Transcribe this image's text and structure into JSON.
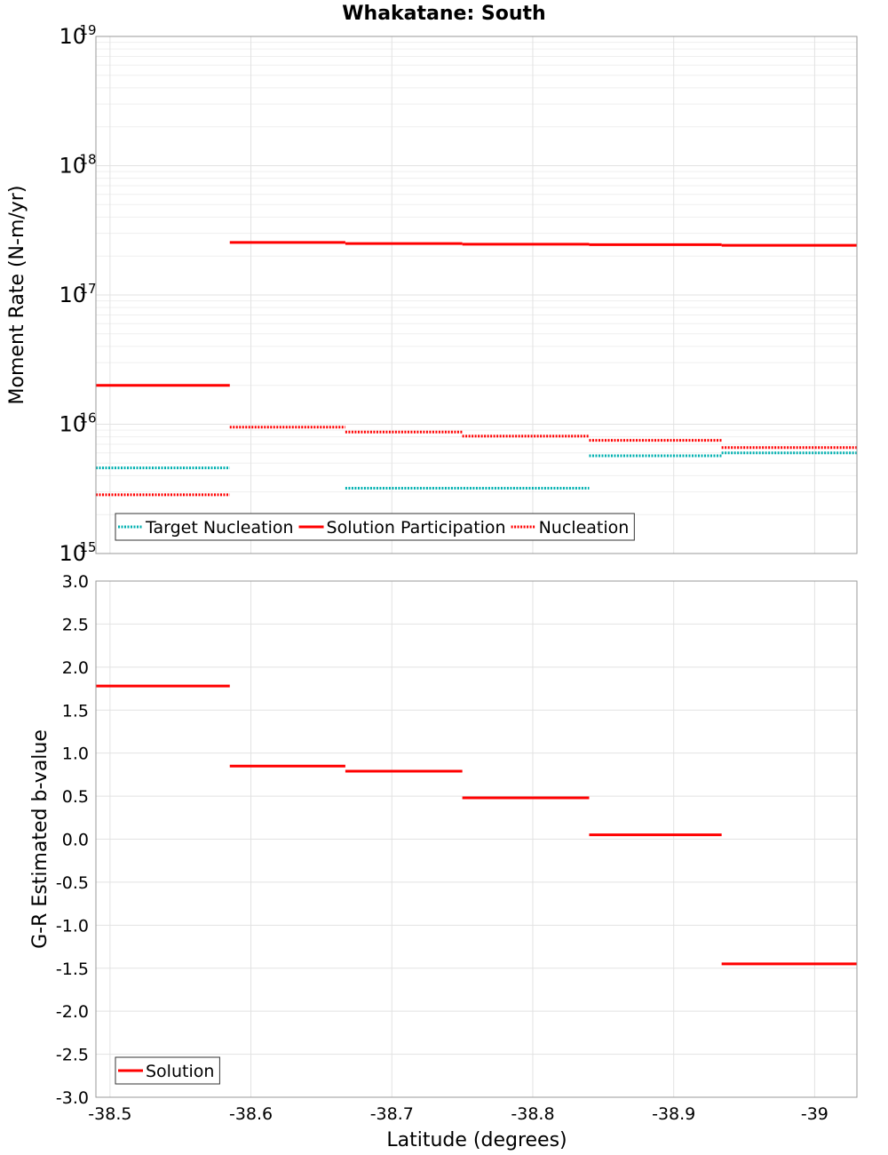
{
  "figure": {
    "title": "Whakatane: South",
    "xlabel": "Latitude (degrees)"
  },
  "chart_data": [
    {
      "type": "line",
      "title": "Whakatane: South",
      "ylabel": "Moment Rate (N-m/yr)",
      "yscale": "log",
      "ylim": [
        1000000000000000.0,
        1e+19
      ],
      "xlim": [
        -38.49,
        -39.03
      ],
      "x_ticks": [
        -38.5,
        -38.6,
        -38.7,
        -38.8,
        -38.9,
        -39
      ],
      "x_tick_labels": [
        "-38.5",
        "-38.6",
        "-38.7",
        "-38.8",
        "-38.9",
        "-39"
      ],
      "y_ticks": [
        1000000000000000.0,
        1e+16,
        1e+17,
        1e+18,
        1e+19
      ],
      "y_tick_labels": [
        {
          "base": "10",
          "exp": "15"
        },
        {
          "base": "10",
          "exp": "16"
        },
        {
          "base": "10",
          "exp": "17"
        },
        {
          "base": "10",
          "exp": "18"
        },
        {
          "base": "10",
          "exp": "19"
        }
      ],
      "grid": true,
      "legend_position": "bottom-left",
      "series": [
        {
          "name": "Target Nucleation",
          "color": "#00b0b0",
          "style": "dotted",
          "segments": [
            {
              "x0": -38.49,
              "x1": -38.585,
              "y": 4600000000000000.0
            },
            {
              "x0": -38.667,
              "x1": -38.84,
              "y": 3200000000000000.0
            },
            {
              "x0": -38.84,
              "x1": -38.934,
              "y": 5700000000000000.0
            },
            {
              "x0": -38.934,
              "x1": -39.03,
              "y": 6000000000000000.0
            }
          ]
        },
        {
          "name": "Solution Participation",
          "color": "#ff0000",
          "style": "solid",
          "segments": [
            {
              "x0": -38.49,
              "x1": -38.585,
              "y": 2e+16
            },
            {
              "x0": -38.585,
              "x1": -38.667,
              "y": 2.55e+17
            },
            {
              "x0": -38.667,
              "x1": -38.75,
              "y": 2.5e+17
            },
            {
              "x0": -38.75,
              "x1": -38.84,
              "y": 2.47e+17
            },
            {
              "x0": -38.84,
              "x1": -38.934,
              "y": 2.45e+17
            },
            {
              "x0": -38.934,
              "x1": -39.03,
              "y": 2.42e+17
            }
          ]
        },
        {
          "name": "Nucleation",
          "color": "#ff0000",
          "style": "dotted",
          "segments": [
            {
              "x0": -38.49,
              "x1": -38.585,
              "y": 2850000000000000.0
            },
            {
              "x0": -38.585,
              "x1": -38.667,
              "y": 9500000000000000.0
            },
            {
              "x0": -38.667,
              "x1": -38.75,
              "y": 8700000000000000.0
            },
            {
              "x0": -38.75,
              "x1": -38.84,
              "y": 8100000000000000.0
            },
            {
              "x0": -38.84,
              "x1": -38.934,
              "y": 7500000000000000.0
            },
            {
              "x0": -38.934,
              "x1": -39.03,
              "y": 6600000000000000.0
            }
          ]
        }
      ]
    },
    {
      "type": "line",
      "xlabel": "Latitude (degrees)",
      "ylabel": "G-R Estimated b-value",
      "ylim": [
        -3.0,
        3.0
      ],
      "xlim": [
        -38.49,
        -39.03
      ],
      "x_ticks": [
        -38.5,
        -38.6,
        -38.7,
        -38.8,
        -38.9,
        -39
      ],
      "x_tick_labels": [
        "-38.5",
        "-38.6",
        "-38.7",
        "-38.8",
        "-38.9",
        "-39"
      ],
      "y_ticks": [
        3.0,
        2.5,
        2.0,
        1.5,
        1.0,
        0.5,
        0.0,
        -0.5,
        -1.0,
        -1.5,
        -2.0,
        -2.5,
        -3.0
      ],
      "y_tick_labels": [
        "3.0",
        "2.5",
        "2.0",
        "1.5",
        "1.0",
        "0.5",
        "0.0",
        "-0.5",
        "-1.0",
        "-1.5",
        "-2.0",
        "-2.5",
        "-3.0"
      ],
      "grid": true,
      "legend_position": "bottom-left",
      "series": [
        {
          "name": "Solution",
          "color": "#ff0000",
          "style": "solid",
          "segments": [
            {
              "x0": -38.49,
              "x1": -38.585,
              "y": 1.78
            },
            {
              "x0": -38.585,
              "x1": -38.667,
              "y": 0.85
            },
            {
              "x0": -38.667,
              "x1": -38.75,
              "y": 0.79
            },
            {
              "x0": -38.75,
              "x1": -38.84,
              "y": 0.48
            },
            {
              "x0": -38.84,
              "x1": -38.934,
              "y": 0.05
            },
            {
              "x0": -38.934,
              "x1": -39.03,
              "y": -1.45
            }
          ]
        }
      ]
    }
  ]
}
